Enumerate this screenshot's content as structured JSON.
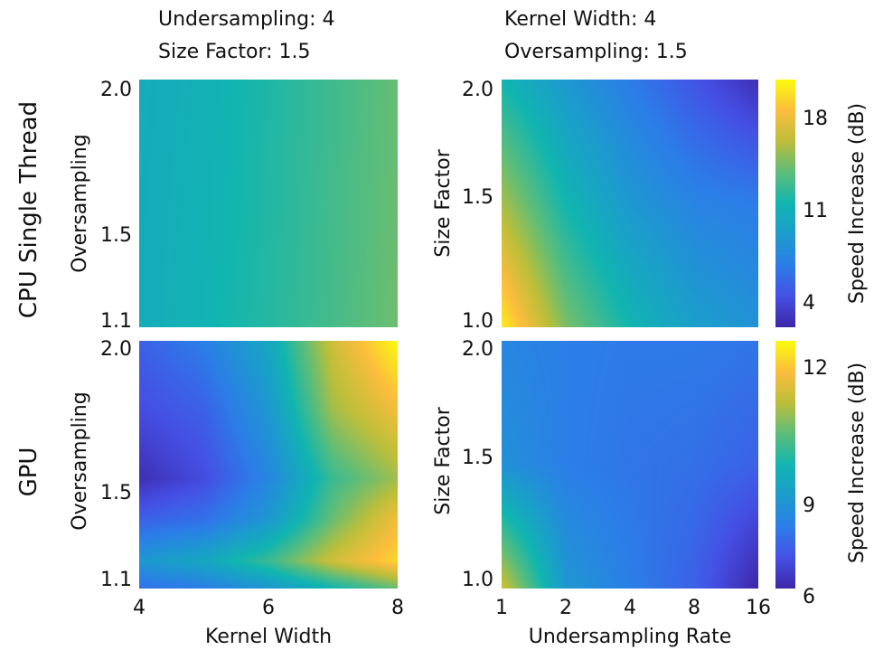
{
  "headers": {
    "left": [
      "Undersampling: 4",
      "Size Factor: 1.5"
    ],
    "right": [
      "Kernel Width: 4",
      "Oversampling: 1.5"
    ]
  },
  "rows": [
    "CPU Single Thread",
    "GPU"
  ],
  "colorbars": [
    {
      "label": "Speed Increase (dB)",
      "ticks": [
        "4",
        "11",
        "18"
      ],
      "range": [
        2,
        20
      ]
    },
    {
      "label": "Speed Increase (dB)",
      "ticks": [
        "6",
        "9",
        "12"
      ],
      "range": [
        6,
        13
      ]
    }
  ],
  "chart_data": [
    {
      "type": "heatmap",
      "row": "CPU Single Thread",
      "xlabel": "",
      "ylabel": "Oversampling",
      "x_ticks": [
        "4",
        "6",
        "8"
      ],
      "y_ticks": [
        "1.1",
        "1.5",
        "2.0"
      ],
      "x": [
        4,
        5,
        6,
        7,
        8
      ],
      "y": [
        1.1,
        1.5,
        2.0
      ],
      "z": [
        [
          10.2,
          10.8,
          11.6,
          12.6,
          13.7
        ],
        [
          10.2,
          10.7,
          11.5,
          12.5,
          13.6
        ],
        [
          10.1,
          10.6,
          11.4,
          12.4,
          13.5
        ]
      ],
      "zlim": [
        2,
        20
      ]
    },
    {
      "type": "heatmap",
      "row": "CPU Single Thread",
      "xlabel": "",
      "ylabel": "Size Factor",
      "x_ticks": [
        "1",
        "2",
        "4",
        "8",
        "16"
      ],
      "y_ticks": [
        "1.0",
        "1.5",
        "2.0"
      ],
      "x": [
        1,
        2,
        4,
        8,
        16
      ],
      "y": [
        1.0,
        1.5,
        2.0
      ],
      "z": [
        [
          19.5,
          14.0,
          11.0,
          9.0,
          8.0
        ],
        [
          15.0,
          11.0,
          8.5,
          7.0,
          6.5
        ],
        [
          11.0,
          8.5,
          6.5,
          4.5,
          2.5
        ]
      ],
      "zlim": [
        2,
        20
      ]
    },
    {
      "type": "heatmap",
      "row": "GPU",
      "xlabel": "Kernel Width",
      "ylabel": "Oversampling",
      "x_ticks": [
        "4",
        "6",
        "8"
      ],
      "y_ticks": [
        "1.1",
        "1.5",
        "2.0"
      ],
      "x": [
        4,
        5,
        6,
        7,
        8
      ],
      "y": [
        1.1,
        1.2,
        1.35,
        1.5,
        1.75,
        2.0
      ],
      "z": [
        [
          7.5,
          7.8,
          8.5,
          9.5,
          10.5
        ],
        [
          8.5,
          9.0,
          10.0,
          11.5,
          12.5
        ],
        [
          7.2,
          7.5,
          8.5,
          10.5,
          12.0
        ],
        [
          6.2,
          6.8,
          8.0,
          10.0,
          11.0
        ],
        [
          6.8,
          7.2,
          8.5,
          11.0,
          12.0
        ],
        [
          7.2,
          7.8,
          9.0,
          11.5,
          13.0
        ]
      ],
      "zlim": [
        6,
        13
      ]
    },
    {
      "type": "heatmap",
      "row": "GPU",
      "xlabel": "Undersampling Rate",
      "ylabel": "Size Factor",
      "x_ticks": [
        "1",
        "2",
        "4",
        "8",
        "16"
      ],
      "y_ticks": [
        "1.0",
        "1.5",
        "2.0"
      ],
      "x": [
        1,
        2,
        4,
        8,
        16
      ],
      "y": [
        1.0,
        1.5,
        2.0
      ],
      "z": [
        [
          11.5,
          8.5,
          7.8,
          7.2,
          6.0
        ],
        [
          8.3,
          7.8,
          7.6,
          7.5,
          7.2
        ],
        [
          8.0,
          7.8,
          7.7,
          7.7,
          7.6
        ]
      ],
      "zlim": [
        6,
        13
      ]
    }
  ]
}
